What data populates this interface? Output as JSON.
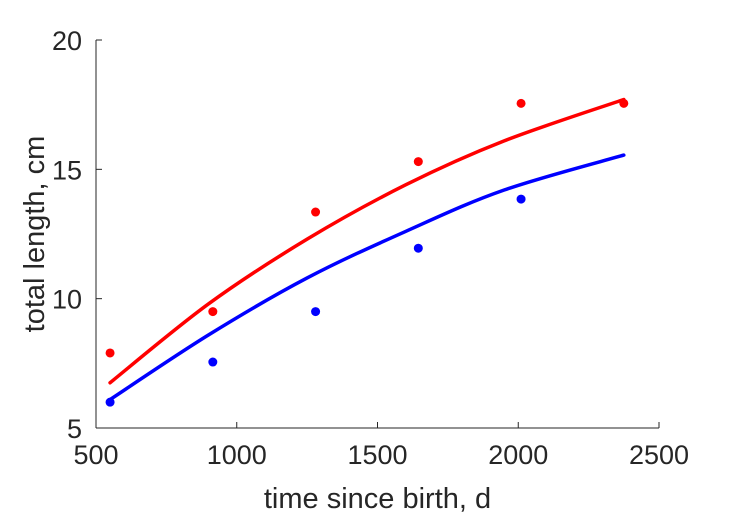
{
  "chart_data": {
    "type": "scatter",
    "title": "",
    "xlabel": "time since birth, d",
    "ylabel": "total length, cm",
    "xlim": [
      500,
      2500
    ],
    "ylim": [
      5,
      20
    ],
    "xticks": [
      "500",
      "1000",
      "1500",
      "2000",
      "2500"
    ],
    "yticks": [
      "5",
      "10",
      "15",
      "20"
    ],
    "grid": false,
    "legend": "none",
    "series": [
      {
        "color": "#ff0000",
        "points": {
          "x": [
            550,
            915,
            1280,
            1645,
            2010,
            2375
          ],
          "y": [
            7.9,
            9.5,
            13.35,
            15.3,
            17.55,
            17.55
          ]
        },
        "fit": {
          "x": [
            550,
            900,
            1250,
            1600,
            1950,
            2375
          ],
          "y": [
            6.75,
            9.8,
            12.3,
            14.4,
            16.1,
            17.7
          ]
        }
      },
      {
        "color": "#0000ff",
        "points": {
          "x": [
            550,
            915,
            1280,
            1645,
            2010
          ],
          "y": [
            6.0,
            7.55,
            9.5,
            11.95,
            13.85
          ]
        },
        "fit": {
          "x": [
            550,
            900,
            1250,
            1600,
            1950,
            2375
          ],
          "y": [
            6.1,
            8.6,
            10.8,
            12.6,
            14.2,
            15.55
          ]
        }
      }
    ]
  }
}
